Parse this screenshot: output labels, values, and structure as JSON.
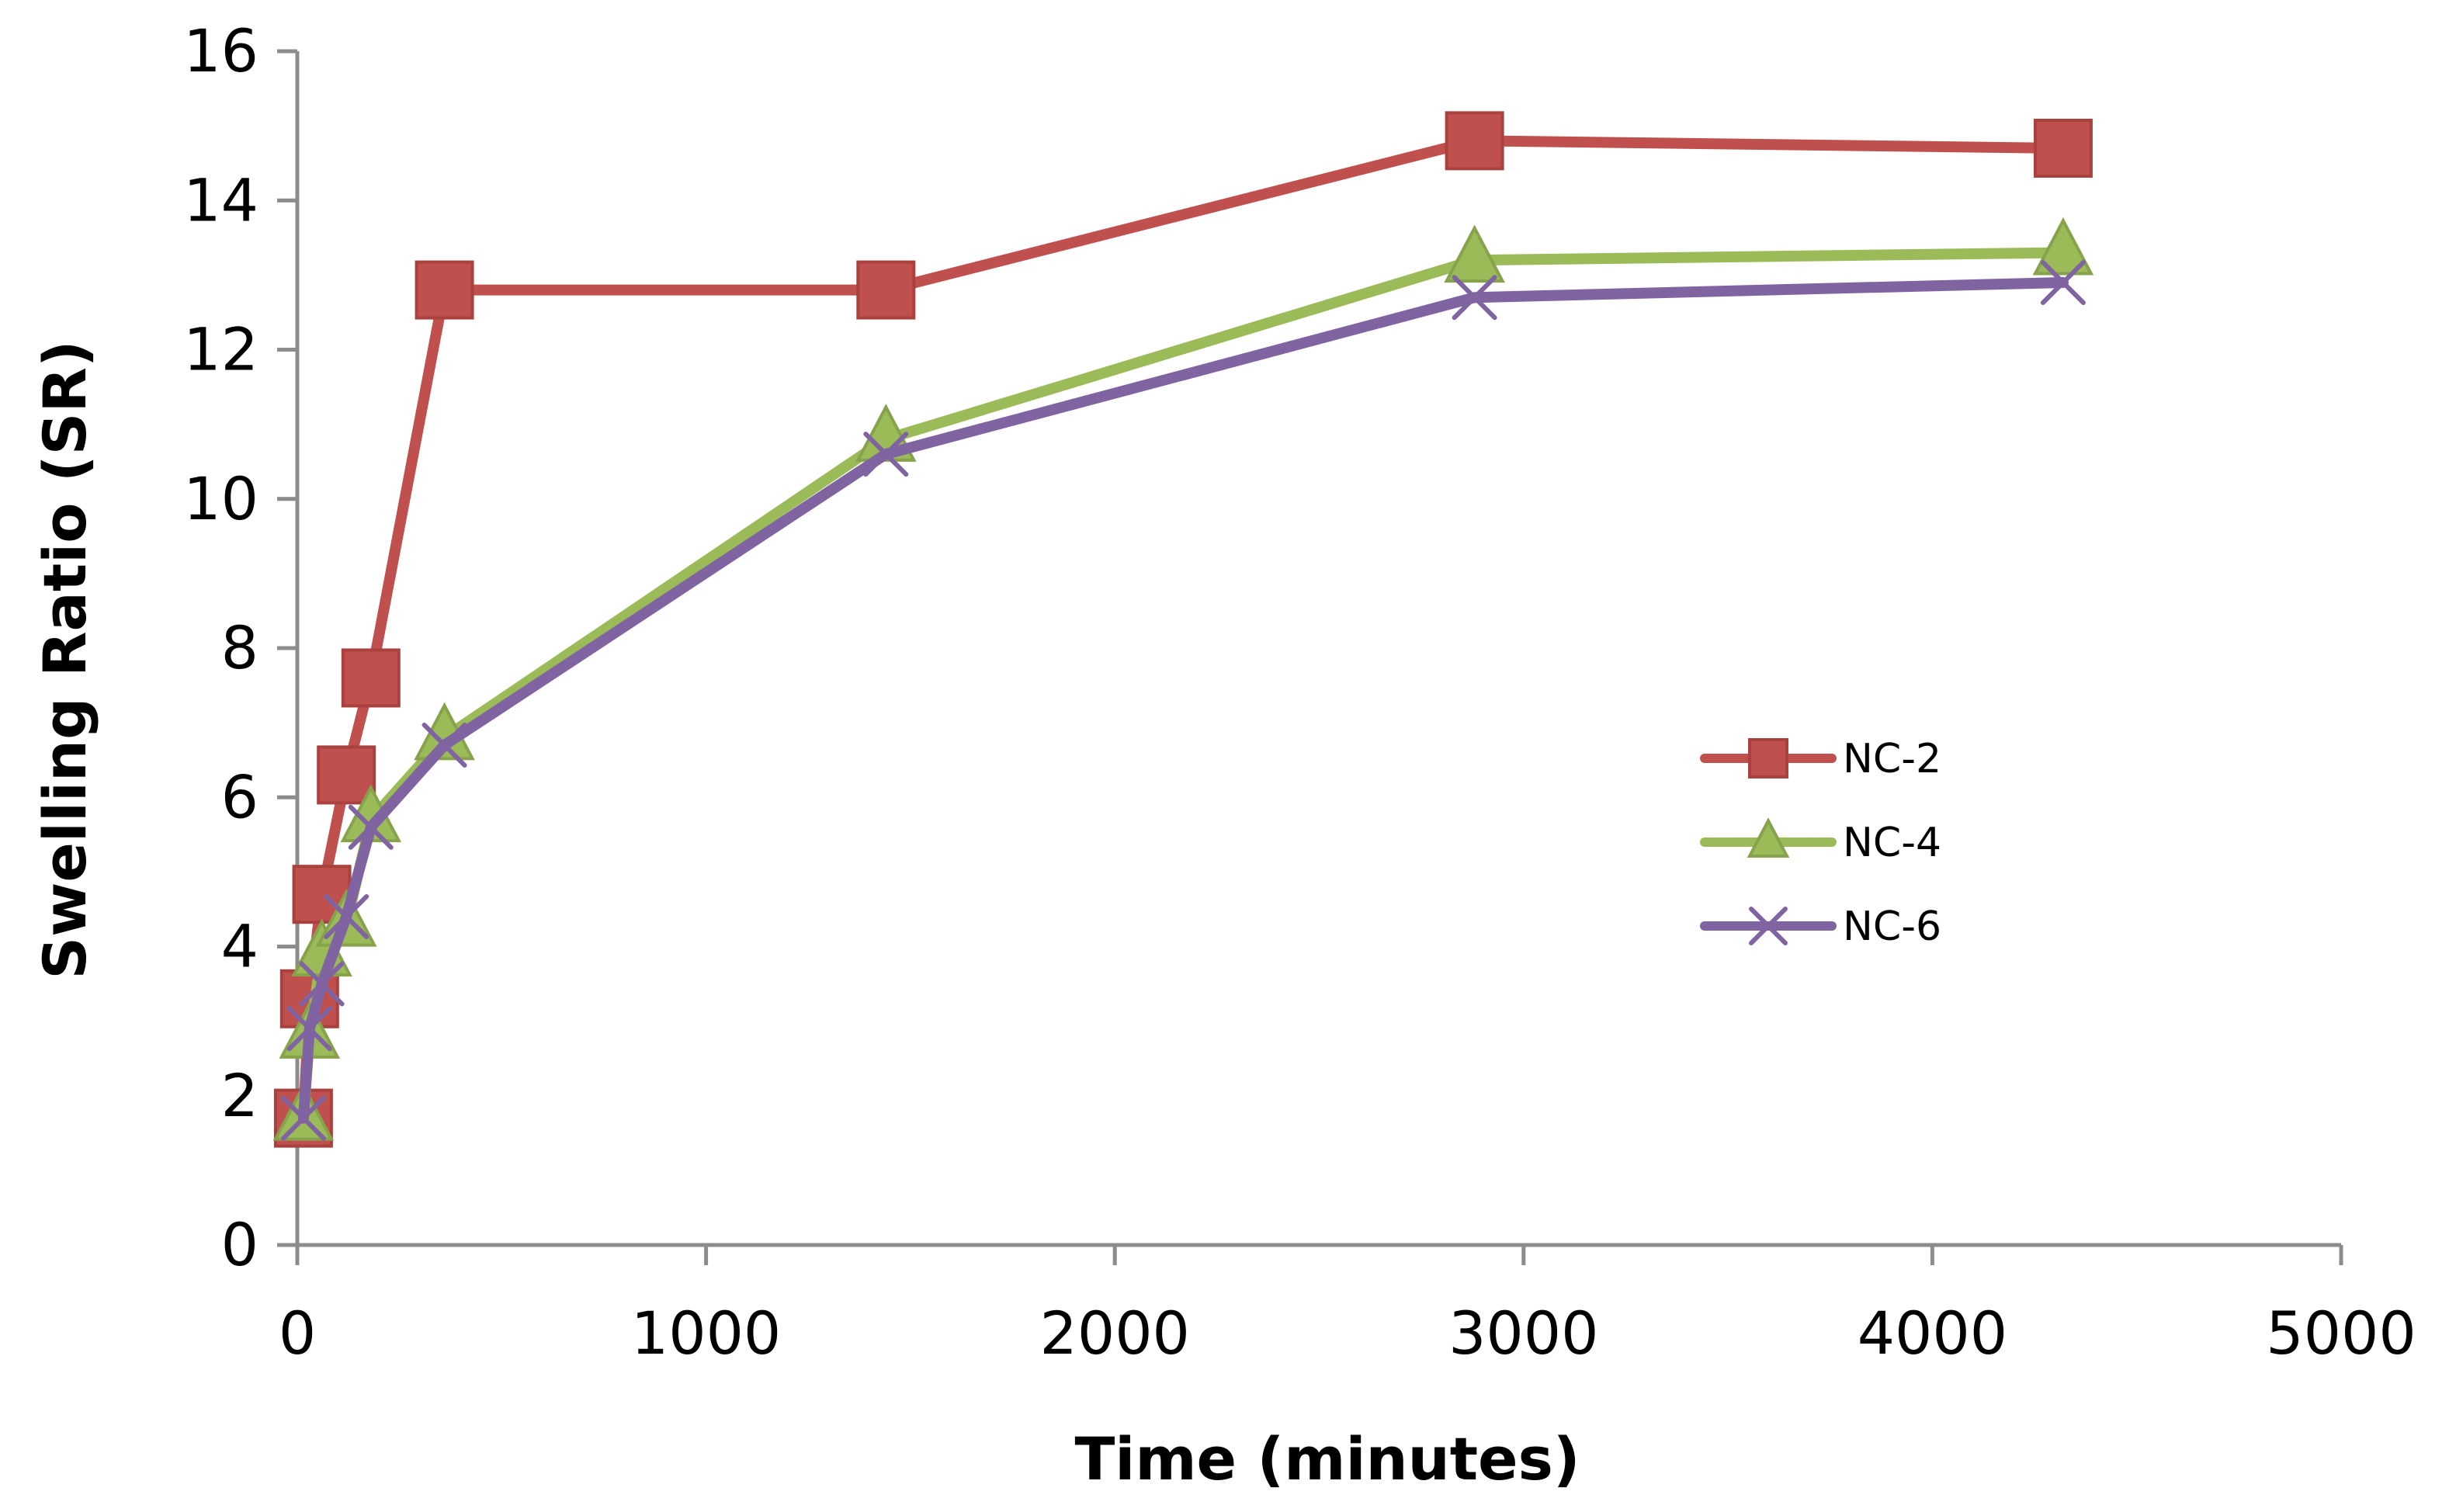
{
  "chart_data": {
    "type": "line",
    "title": "",
    "xlabel": "Time (minutes)",
    "ylabel": "Swelling Ratio (SR)",
    "xlim": [
      0,
      5000
    ],
    "ylim": [
      0,
      16
    ],
    "x_ticks": [
      0,
      1000,
      2000,
      3000,
      4000,
      5000
    ],
    "y_ticks": [
      0,
      2,
      4,
      6,
      8,
      10,
      12,
      14,
      16
    ],
    "x_tick_labels": [
      "0",
      "1000",
      "2000",
      "3000",
      "4000",
      "5000"
    ],
    "y_tick_labels": [
      "0",
      "2",
      "4",
      "6",
      "8",
      "10",
      "12",
      "14",
      "16"
    ],
    "grid": false,
    "legend_position": "right-middle",
    "series": [
      {
        "name": "NC-2",
        "color": "#c0504d",
        "marker": "square",
        "x": [
          15,
          30,
          60,
          120,
          180,
          360,
          1440,
          2880,
          4320
        ],
        "y": [
          1.7,
          3.3,
          4.7,
          6.3,
          7.6,
          12.8,
          12.8,
          14.8,
          14.7
        ]
      },
      {
        "name": "NC-4",
        "color": "#9bbb59",
        "marker": "triangle",
        "x": [
          15,
          30,
          60,
          120,
          180,
          360,
          1440,
          2880,
          4320
        ],
        "y": [
          1.7,
          2.8,
          3.9,
          4.3,
          5.7,
          6.8,
          10.8,
          13.2,
          13.3
        ]
      },
      {
        "name": "NC-6",
        "color": "#8064a2",
        "marker": "x",
        "x": [
          15,
          30,
          60,
          120,
          180,
          360,
          1440,
          2880,
          4320
        ],
        "y": [
          1.7,
          2.9,
          3.5,
          4.4,
          5.6,
          6.7,
          10.6,
          12.7,
          12.9
        ]
      }
    ]
  }
}
